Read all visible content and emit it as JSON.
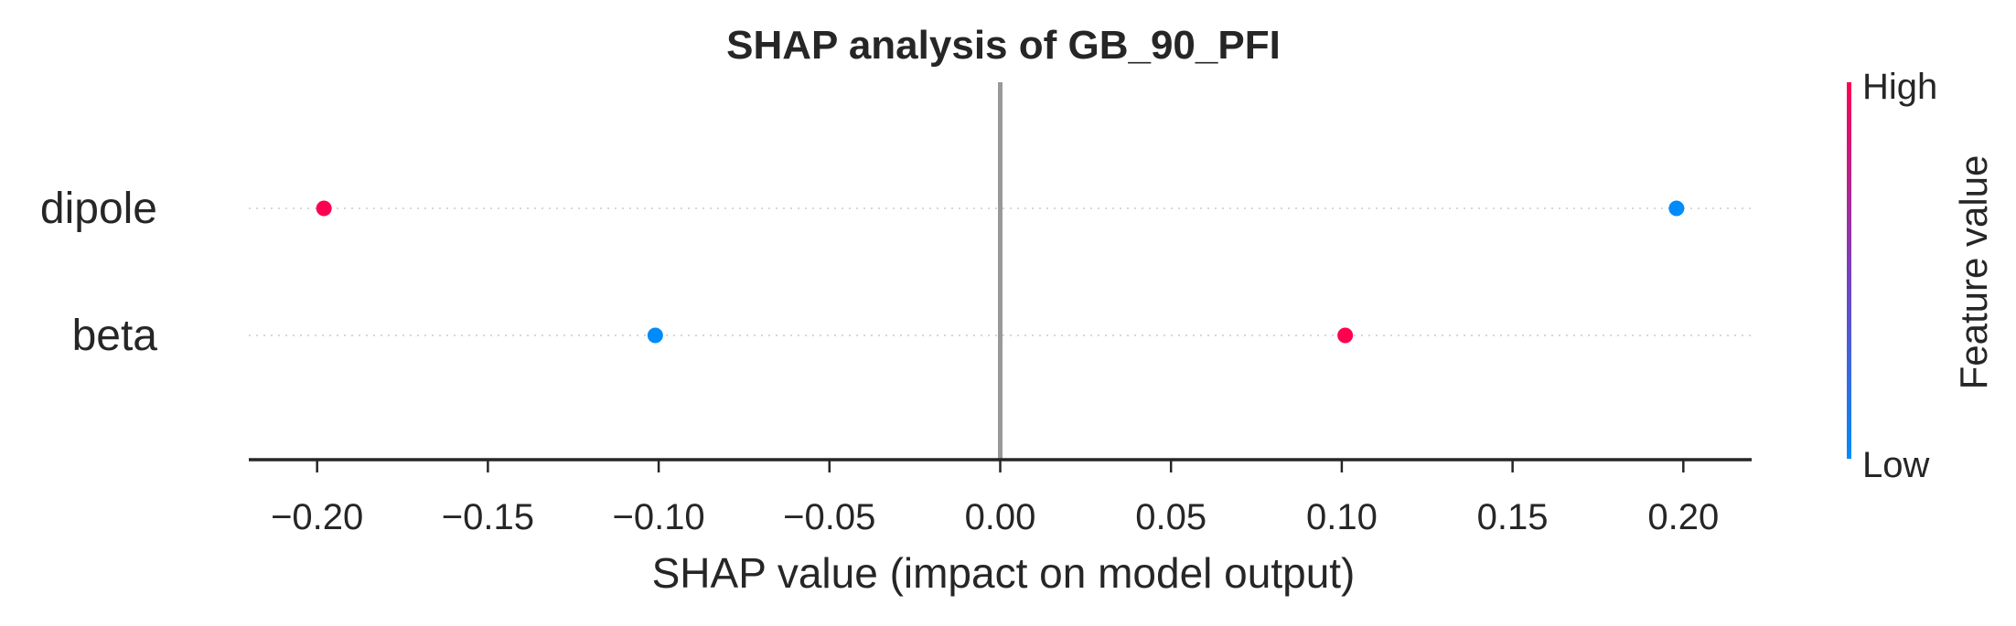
{
  "chart_data": {
    "type": "scatter",
    "title": "SHAP analysis of GB_90_PFI",
    "xlabel": "SHAP value (impact on model output)",
    "ylabel": "",
    "xlim": [
      -0.22,
      0.22
    ],
    "xticks": [
      -0.2,
      -0.15,
      -0.1,
      -0.05,
      0.0,
      0.05,
      0.1,
      0.15,
      0.2
    ],
    "xtick_labels": [
      "−0.20",
      "−0.15",
      "−0.10",
      "−0.05",
      "0.00",
      "0.05",
      "0.10",
      "0.15",
      "0.20"
    ],
    "zero_line": 0.0,
    "features": [
      "dipole",
      "beta"
    ],
    "points": [
      {
        "feature": "dipole",
        "shap": -0.198,
        "feature_value": "high"
      },
      {
        "feature": "dipole",
        "shap": 0.198,
        "feature_value": "low"
      },
      {
        "feature": "beta",
        "shap": -0.101,
        "feature_value": "low"
      },
      {
        "feature": "beta",
        "shap": 0.101,
        "feature_value": "high"
      }
    ],
    "colorbar": {
      "label": "Feature value",
      "high_label": "High",
      "low_label": "Low",
      "high_color": "#ff0051",
      "low_color": "#008bfb"
    },
    "grid": false
  }
}
